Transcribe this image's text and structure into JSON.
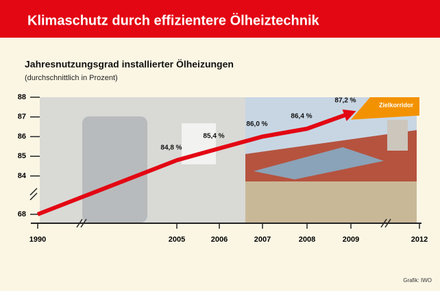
{
  "header": {
    "title": "Klimaschutz durch effizientere Ölheiztechnik"
  },
  "chart_data": {
    "type": "line",
    "title": "Jahresnutzungsgrad installierter Ölheizungen",
    "subtitle": "(durchschnittlich in Prozent)",
    "categories": [
      "1990",
      "2005",
      "2006",
      "2007",
      "2008",
      "2009",
      "2012"
    ],
    "series": [
      {
        "color": "#e30613",
        "values": [
          68,
          84.8,
          85.4,
          86.0,
          86.4,
          87.2,
          null
        ],
        "value_labels": [
          null,
          "84,8 %",
          "85,4 %",
          "86,0 %",
          "86,4 %",
          "87,2 %",
          null
        ]
      }
    ],
    "ylim": [
      68,
      88
    ],
    "yticks": [
      68,
      84,
      85,
      86,
      87,
      88
    ],
    "axis_break": true,
    "annotations": [
      "Zielkorridor"
    ],
    "source": "Grafik: IWO"
  }
}
